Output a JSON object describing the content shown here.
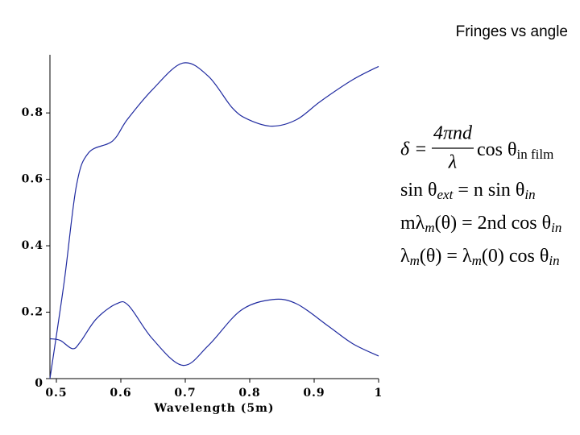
{
  "chart_data": {
    "type": "line",
    "title": "Fringes vs angle",
    "x_label": "Wavelength (5m)",
    "xlim": [
      0.49,
      1.0
    ],
    "ylim": [
      0,
      0.975
    ],
    "xticks": [
      0.5,
      0.6,
      0.7,
      0.8,
      0.9,
      1
    ],
    "yticks": [
      0,
      0.2,
      0.4,
      0.6,
      0.8
    ],
    "series": [
      {
        "color": "#1f2aa0",
        "x": [
          0.49,
          0.512,
          0.531,
          0.55,
          0.587,
          0.61,
          0.649,
          0.696,
          0.736,
          0.773,
          0.798,
          0.835,
          0.873,
          0.91,
          0.96,
          1.0
        ],
        "values": [
          0,
          0.29,
          0.58,
          0.68,
          0.715,
          0.78,
          0.87,
          0.95,
          0.91,
          0.815,
          0.78,
          0.76,
          0.78,
          0.835,
          0.9,
          0.94
        ]
      },
      {
        "color": "#1f2aa0",
        "x": [
          0.49,
          0.506,
          0.525,
          0.537,
          0.562,
          0.593,
          0.612,
          0.649,
          0.696,
          0.736,
          0.786,
          0.835,
          0.873,
          0.922,
          0.96,
          1.0
        ],
        "values": [
          0.12,
          0.115,
          0.09,
          0.11,
          0.18,
          0.225,
          0.22,
          0.12,
          0.04,
          0.1,
          0.205,
          0.238,
          0.225,
          0.158,
          0.105,
          0.068
        ]
      }
    ]
  },
  "equations": [
    {
      "lhs": "δ =",
      "numerator": "4πnd",
      "denominator": "λ",
      "rhs": "cos θ",
      "subscript": "in film"
    },
    {
      "parts": [
        "sin θ",
        "ext",
        " = n sin θ",
        "in"
      ]
    },
    {
      "parts": [
        "mλ",
        "m",
        "(θ) = 2nd cos θ",
        "in"
      ]
    },
    {
      "parts": [
        "λ",
        "m",
        "(θ) = λ",
        "m",
        "(0) cos θ",
        "in"
      ]
    }
  ]
}
